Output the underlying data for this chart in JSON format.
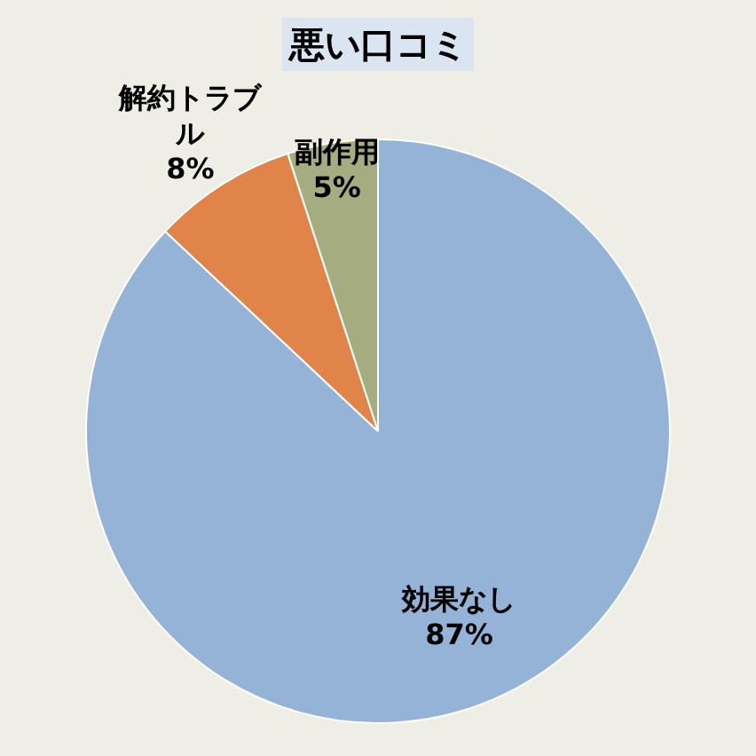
{
  "chart_data": {
    "type": "pie",
    "title": "悪い口コミ",
    "categories": [
      "効果なし",
      "解約トラブル",
      "副作用"
    ],
    "values": [
      87,
      8,
      5
    ],
    "value_labels": [
      "87%",
      "8%",
      "5%"
    ],
    "colors": [
      "#95b3d7",
      "#e0844a",
      "#a5ad80"
    ],
    "legend": false
  }
}
